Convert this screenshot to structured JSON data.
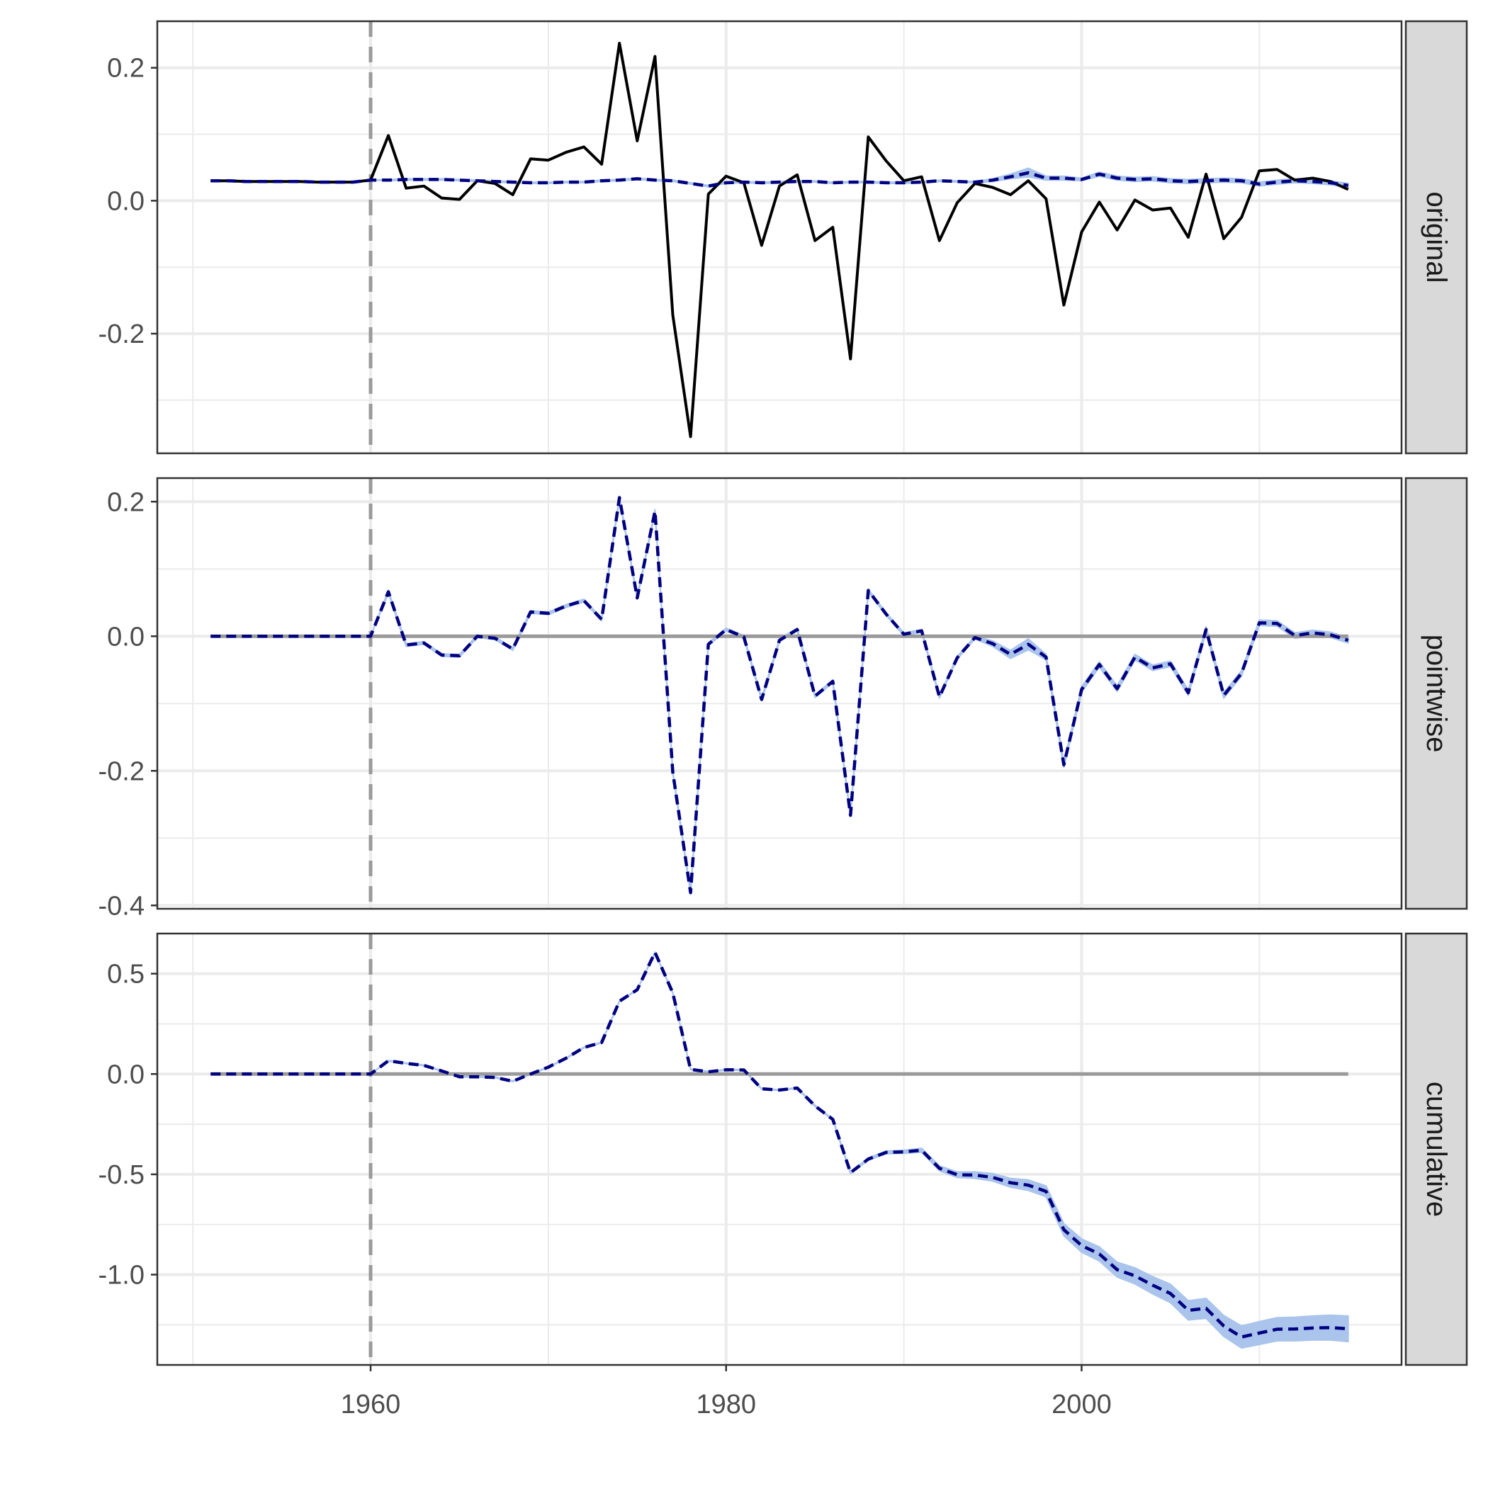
{
  "chart_data": {
    "type": "line",
    "treatment_year": 1960,
    "x_axis": {
      "range": [
        1948,
        2018
      ],
      "ticks": [
        1960,
        1980,
        2000
      ],
      "tick_labels": [
        "1960",
        "1980",
        "2000"
      ],
      "minor_ticks": [
        1950,
        1970,
        1990,
        2010
      ]
    },
    "x": [
      1951,
      1952,
      1953,
      1954,
      1955,
      1956,
      1957,
      1958,
      1959,
      1960,
      1961,
      1962,
      1963,
      1964,
      1965,
      1966,
      1967,
      1968,
      1969,
      1970,
      1971,
      1972,
      1973,
      1974,
      1975,
      1976,
      1977,
      1978,
      1979,
      1980,
      1981,
      1982,
      1983,
      1984,
      1985,
      1986,
      1987,
      1988,
      1989,
      1990,
      1991,
      1992,
      1993,
      1994,
      1995,
      1996,
      1997,
      1998,
      1999,
      2000,
      2001,
      2002,
      2003,
      2004,
      2005,
      2006,
      2007,
      2008,
      2009,
      2010,
      2011,
      2012,
      2013,
      2014,
      2015
    ],
    "panels": [
      {
        "strip_label": "original",
        "ylim": [
          -0.38,
          0.27
        ],
        "y_ticks": [
          -0.2,
          0.0,
          0.2
        ],
        "y_tick_labels": [
          "-0.2",
          "0.0",
          "0.2"
        ],
        "y_minor_ticks": [
          -0.3,
          -0.1,
          0.1
        ],
        "zero_line": false,
        "series": [
          {
            "role": "observed",
            "style": "solid",
            "color": "#000000",
            "values": [
              0.03,
              0.03,
              0.029,
              0.029,
              0.029,
              0.029,
              0.028,
              0.028,
              0.028,
              0.031,
              0.098,
              0.019,
              0.022,
              0.004,
              0.002,
              0.03,
              0.026,
              0.009,
              0.063,
              0.061,
              0.073,
              0.081,
              0.055,
              0.237,
              0.09,
              0.217,
              -0.172,
              -0.355,
              0.01,
              0.037,
              0.027,
              -0.067,
              0.022,
              0.039,
              -0.06,
              -0.04,
              -0.238,
              0.096,
              0.06,
              0.03,
              0.036,
              -0.06,
              -0.003,
              0.026,
              0.02,
              0.009,
              0.03,
              0.003,
              -0.157,
              -0.047,
              -0.002,
              -0.044,
              0.001,
              -0.014,
              -0.011,
              -0.055,
              0.04,
              -0.057,
              -0.025,
              0.045,
              0.047,
              0.031,
              0.034,
              0.029,
              0.017
            ]
          },
          {
            "role": "counterfactual",
            "style": "dashed",
            "color": "#000080",
            "values": [
              0.03,
              0.03,
              0.029,
              0.029,
              0.029,
              0.029,
              0.028,
              0.028,
              0.028,
              0.031,
              0.031,
              0.032,
              0.032,
              0.032,
              0.031,
              0.03,
              0.029,
              0.028,
              0.027,
              0.027,
              0.028,
              0.028,
              0.03,
              0.031,
              0.033,
              0.031,
              0.03,
              0.026,
              0.022,
              0.027,
              0.028,
              0.027,
              0.028,
              0.029,
              0.029,
              0.027,
              0.028,
              0.028,
              0.027,
              0.027,
              0.028,
              0.03,
              0.029,
              0.028,
              0.031,
              0.036,
              0.042,
              0.034,
              0.034,
              0.032,
              0.04,
              0.034,
              0.032,
              0.033,
              0.03,
              0.029,
              0.03,
              0.031,
              0.03,
              0.025,
              0.028,
              0.03,
              0.029,
              0.027,
              0.023
            ]
          },
          {
            "role": "interval_low",
            "color": "#aac4ec",
            "values": [
              0.03,
              0.03,
              0.029,
              0.029,
              0.029,
              0.029,
              0.028,
              0.028,
              0.028,
              0.031,
              0.03,
              0.031,
              0.031,
              0.031,
              0.03,
              0.029,
              0.028,
              0.027,
              0.026,
              0.026,
              0.027,
              0.027,
              0.029,
              0.03,
              0.032,
              0.03,
              0.029,
              0.025,
              0.021,
              0.026,
              0.027,
              0.026,
              0.027,
              0.028,
              0.028,
              0.026,
              0.027,
              0.027,
              0.026,
              0.026,
              0.027,
              0.029,
              0.028,
              0.027,
              0.029,
              0.033,
              0.036,
              0.031,
              0.031,
              0.03,
              0.037,
              0.031,
              0.029,
              0.03,
              0.027,
              0.026,
              0.027,
              0.028,
              0.027,
              0.022,
              0.025,
              0.027,
              0.026,
              0.024,
              0.02
            ]
          },
          {
            "role": "interval_high",
            "color": "#aac4ec",
            "values": [
              0.03,
              0.03,
              0.029,
              0.029,
              0.029,
              0.029,
              0.028,
              0.028,
              0.028,
              0.031,
              0.032,
              0.033,
              0.033,
              0.033,
              0.032,
              0.031,
              0.03,
              0.029,
              0.028,
              0.028,
              0.029,
              0.029,
              0.031,
              0.032,
              0.034,
              0.032,
              0.031,
              0.027,
              0.023,
              0.028,
              0.029,
              0.028,
              0.029,
              0.03,
              0.03,
              0.028,
              0.029,
              0.029,
              0.028,
              0.028,
              0.029,
              0.031,
              0.03,
              0.029,
              0.033,
              0.04,
              0.049,
              0.037,
              0.037,
              0.034,
              0.043,
              0.037,
              0.035,
              0.036,
              0.033,
              0.032,
              0.033,
              0.034,
              0.033,
              0.028,
              0.031,
              0.033,
              0.032,
              0.03,
              0.026
            ]
          }
        ]
      },
      {
        "strip_label": "pointwise",
        "ylim": [
          -0.405,
          0.235
        ],
        "y_ticks": [
          -0.4,
          -0.2,
          0.0,
          0.2
        ],
        "y_tick_labels": [
          "-0.4",
          "-0.2",
          "0.0",
          "0.2"
        ],
        "y_minor_ticks": [
          -0.3,
          -0.1,
          0.1
        ],
        "zero_line": true,
        "series": [
          {
            "role": "effect",
            "style": "dashed",
            "color": "#000080",
            "values": [
              0,
              0,
              0,
              0,
              0,
              0,
              0,
              0,
              0,
              0,
              0.066,
              -0.013,
              -0.01,
              -0.028,
              -0.029,
              0,
              -0.003,
              -0.019,
              0.036,
              0.034,
              0.045,
              0.053,
              0.025,
              0.206,
              0.057,
              0.186,
              -0.202,
              -0.381,
              -0.012,
              0.01,
              -0.001,
              -0.094,
              -0.006,
              0.01,
              -0.089,
              -0.067,
              -0.266,
              0.068,
              0.033,
              0.003,
              0.008,
              -0.09,
              -0.032,
              -0.002,
              -0.011,
              -0.027,
              -0.012,
              -0.031,
              -0.191,
              -0.079,
              -0.042,
              -0.078,
              -0.031,
              -0.047,
              -0.041,
              -0.084,
              0.01,
              -0.088,
              -0.055,
              0.02,
              0.019,
              0.001,
              0.005,
              0.002,
              -0.006
            ]
          },
          {
            "role": "interval_low",
            "color": "#aac4ec",
            "values": [
              0,
              0,
              0,
              0,
              0,
              0,
              0,
              0,
              0,
              0,
              0.064,
              -0.015,
              -0.012,
              -0.03,
              -0.031,
              -0.002,
              -0.005,
              -0.021,
              0.034,
              0.032,
              0.043,
              0.051,
              0.023,
              0.204,
              0.055,
              0.184,
              -0.204,
              -0.383,
              -0.014,
              0.008,
              -0.003,
              -0.096,
              -0.008,
              0.008,
              -0.091,
              -0.069,
              -0.268,
              0.066,
              0.031,
              0.001,
              0.006,
              -0.092,
              -0.034,
              -0.004,
              -0.015,
              -0.033,
              -0.02,
              -0.035,
              -0.195,
              -0.083,
              -0.046,
              -0.082,
              -0.035,
              -0.051,
              -0.045,
              -0.088,
              0.006,
              -0.092,
              -0.059,
              0.016,
              0.015,
              -0.003,
              0.001,
              -0.002,
              -0.01
            ]
          },
          {
            "role": "interval_high",
            "color": "#aac4ec",
            "values": [
              0,
              0,
              0,
              0,
              0,
              0,
              0,
              0,
              0,
              0,
              0.068,
              -0.011,
              -0.008,
              -0.026,
              -0.027,
              0.002,
              -0.001,
              -0.017,
              0.038,
              0.036,
              0.047,
              0.055,
              0.027,
              0.208,
              0.059,
              0.188,
              -0.2,
              -0.379,
              -0.01,
              0.012,
              0.001,
              -0.092,
              -0.004,
              0.012,
              -0.087,
              -0.065,
              -0.264,
              0.07,
              0.035,
              0.005,
              0.01,
              -0.088,
              -0.03,
              0.0,
              -0.007,
              -0.021,
              -0.004,
              -0.027,
              -0.187,
              -0.075,
              -0.038,
              -0.074,
              -0.027,
              -0.043,
              -0.037,
              -0.08,
              0.014,
              -0.084,
              -0.051,
              0.024,
              0.023,
              0.005,
              0.009,
              0.006,
              -0.002
            ]
          }
        ]
      },
      {
        "strip_label": "cumulative",
        "ylim": [
          -1.45,
          0.7
        ],
        "y_ticks": [
          -1.0,
          -0.5,
          0.0,
          0.5
        ],
        "y_tick_labels": [
          "-1.0",
          "-0.5",
          "0.0",
          "0.5"
        ],
        "y_minor_ticks": [
          -1.25,
          -0.75,
          -0.25,
          0.25
        ],
        "zero_line": true,
        "series": [
          {
            "role": "effect",
            "style": "dashed",
            "color": "#000080",
            "values": [
              0,
              0,
              0,
              0,
              0,
              0,
              0,
              0,
              0,
              0,
              0.066,
              0.053,
              0.043,
              0.015,
              -0.014,
              -0.014,
              -0.017,
              -0.036,
              0.0,
              0.034,
              0.079,
              0.132,
              0.157,
              0.363,
              0.42,
              0.606,
              0.404,
              0.023,
              0.011,
              0.021,
              0.02,
              -0.074,
              -0.08,
              -0.07,
              -0.159,
              -0.226,
              -0.492,
              -0.424,
              -0.391,
              -0.388,
              -0.38,
              -0.47,
              -0.502,
              -0.504,
              -0.515,
              -0.542,
              -0.554,
              -0.585,
              -0.776,
              -0.855,
              -0.897,
              -0.975,
              -1.006,
              -1.053,
              -1.094,
              -1.178,
              -1.168,
              -1.256,
              -1.311,
              -1.291,
              -1.272,
              -1.271,
              -1.266,
              -1.264,
              -1.27
            ]
          },
          {
            "role": "interval_low",
            "color": "#aac4ec",
            "values": [
              0,
              0,
              0,
              0,
              0,
              0,
              0,
              0,
              0,
              0,
              0.064,
              0.051,
              0.041,
              0.013,
              -0.016,
              -0.016,
              -0.019,
              -0.038,
              -0.002,
              0.032,
              0.077,
              0.13,
              0.155,
              0.361,
              0.418,
              0.604,
              0.402,
              0.021,
              0.009,
              0.019,
              0.018,
              -0.076,
              -0.082,
              -0.072,
              -0.162,
              -0.229,
              -0.496,
              -0.43,
              -0.398,
              -0.396,
              -0.39,
              -0.482,
              -0.516,
              -0.52,
              -0.534,
              -0.564,
              -0.58,
              -0.612,
              -0.806,
              -0.888,
              -0.932,
              -1.012,
              -1.046,
              -1.096,
              -1.14,
              -1.226,
              -1.218,
              -1.308,
              -1.366,
              -1.348,
              -1.33,
              -1.33,
              -1.326,
              -1.326,
              -1.334
            ]
          },
          {
            "role": "interval_high",
            "color": "#aac4ec",
            "values": [
              0,
              0,
              0,
              0,
              0,
              0,
              0,
              0,
              0,
              0,
              0.068,
              0.055,
              0.045,
              0.017,
              -0.012,
              -0.012,
              -0.015,
              -0.034,
              0.002,
              0.036,
              0.081,
              0.134,
              0.159,
              0.365,
              0.422,
              0.608,
              0.406,
              0.025,
              0.013,
              0.023,
              0.022,
              -0.072,
              -0.078,
              -0.068,
              -0.156,
              -0.223,
              -0.488,
              -0.418,
              -0.384,
              -0.38,
              -0.37,
              -0.458,
              -0.488,
              -0.488,
              -0.496,
              -0.52,
              -0.528,
              -0.558,
              -0.746,
              -0.822,
              -0.862,
              -0.938,
              -0.966,
              -1.01,
              -1.048,
              -1.13,
              -1.118,
              -1.204,
              -1.256,
              -1.234,
              -1.214,
              -1.212,
              -1.206,
              -1.202,
              -1.206
            ]
          }
        ]
      }
    ],
    "colors": {
      "observed": "#000000",
      "counterfactual": "#000080",
      "interval": "#aac4ec",
      "zero_line": "#9a9a9a",
      "treatment_line": "#9a9a9a",
      "grid": "#ebebeb",
      "strip_fill": "#d9d9d9"
    }
  }
}
